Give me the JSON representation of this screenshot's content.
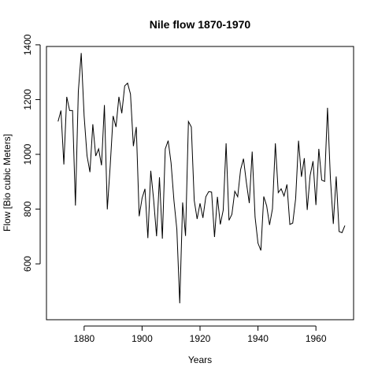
{
  "chart_data": {
    "type": "line",
    "title": "Nile flow 1870-1970",
    "xlabel": "Years",
    "ylabel": "Flow [Bio cubic Meters]",
    "xlim": [
      1867,
      1973
    ],
    "ylim": [
      396,
      1394
    ],
    "x_ticks": [
      1880,
      1900,
      1920,
      1940,
      1960
    ],
    "y_ticks": [
      600,
      800,
      1000,
      1200,
      1400
    ],
    "grid": false,
    "line_color": "#000000",
    "series": [
      {
        "x": [
          1871,
          1872,
          1873,
          1874,
          1875,
          1876,
          1877,
          1878,
          1879,
          1880,
          1881,
          1882,
          1883,
          1884,
          1885,
          1886,
          1887,
          1888,
          1889,
          1890,
          1891,
          1892,
          1893,
          1894,
          1895,
          1896,
          1897,
          1898,
          1899,
          1900,
          1901,
          1902,
          1903,
          1904,
          1905,
          1906,
          1907,
          1908,
          1909,
          1910,
          1911,
          1912,
          1913,
          1914,
          1915,
          1916,
          1917,
          1918,
          1919,
          1920,
          1921,
          1922,
          1923,
          1924,
          1925,
          1926,
          1927,
          1928,
          1929,
          1930,
          1931,
          1932,
          1933,
          1934,
          1935,
          1936,
          1937,
          1938,
          1939,
          1940,
          1941,
          1942,
          1943,
          1944,
          1945,
          1946,
          1947,
          1948,
          1949,
          1950,
          1951,
          1952,
          1953,
          1954,
          1955,
          1956,
          1957,
          1958,
          1959,
          1960,
          1961,
          1962,
          1963,
          1964,
          1965,
          1966,
          1967,
          1968,
          1969,
          1970
        ],
        "values": [
          1120,
          1160,
          963,
          1210,
          1160,
          1160,
          813,
          1230,
          1370,
          1140,
          995,
          935,
          1110,
          994,
          1020,
          960,
          1180,
          799,
          958,
          1140,
          1100,
          1210,
          1150,
          1250,
          1260,
          1220,
          1030,
          1100,
          774,
          840,
          874,
          694,
          940,
          833,
          701,
          916,
          692,
          1020,
          1050,
          969,
          831,
          726,
          456,
          824,
          702,
          1120,
          1100,
          832,
          764,
          821,
          768,
          845,
          864,
          862,
          698,
          845,
          744,
          796,
          1040,
          759,
          781,
          865,
          845,
          944,
          984,
          897,
          822,
          1010,
          771,
          676,
          649,
          846,
          812,
          742,
          801,
          1040,
          860,
          874,
          848,
          890,
          744,
          749,
          838,
          1050,
          918,
          986,
          797,
          923,
          975,
          815,
          1020,
          906,
          901,
          1170,
          912,
          746,
          919,
          718,
          714,
          740
        ]
      }
    ]
  }
}
